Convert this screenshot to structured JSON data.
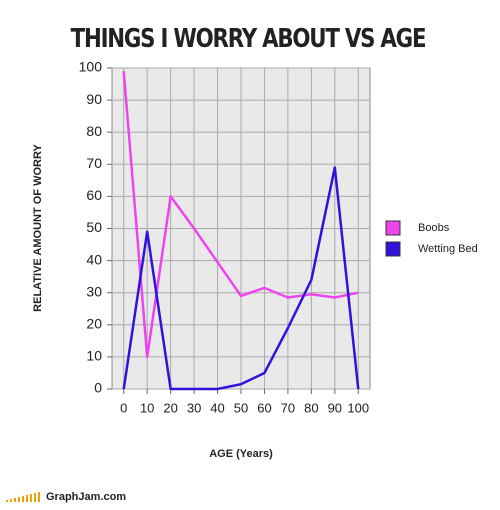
{
  "chart_data": {
    "type": "line",
    "title": "THINGS I WORRY ABOUT VS AGE",
    "x_label": "AGE (Years)",
    "y_label": "RELATIVE AMOUNT OF WORRY",
    "source": "GraphJam.com",
    "x": [
      0,
      10,
      20,
      30,
      40,
      50,
      60,
      70,
      80,
      90,
      100
    ],
    "series": [
      {
        "name": "Boobs",
        "color": "#ee44ee",
        "values": [
          99,
          10,
          60,
          50,
          39.5,
          29,
          31.5,
          28.5,
          29.5,
          28.5,
          30
        ]
      },
      {
        "name": "Wetting Bed",
        "color": "#3311dd",
        "values": [
          0,
          49,
          0,
          0,
          0,
          1.5,
          5,
          19,
          34,
          69,
          0
        ]
      }
    ],
    "xlim": [
      -5,
      105
    ],
    "ylim": [
      0,
      100
    ],
    "xticks": [
      0,
      10,
      20,
      30,
      40,
      50,
      60,
      70,
      80,
      90,
      100
    ],
    "yticks": [
      0,
      10,
      20,
      30,
      40,
      50,
      60,
      70,
      80,
      90,
      100
    ],
    "grid": true,
    "legend": "right"
  }
}
